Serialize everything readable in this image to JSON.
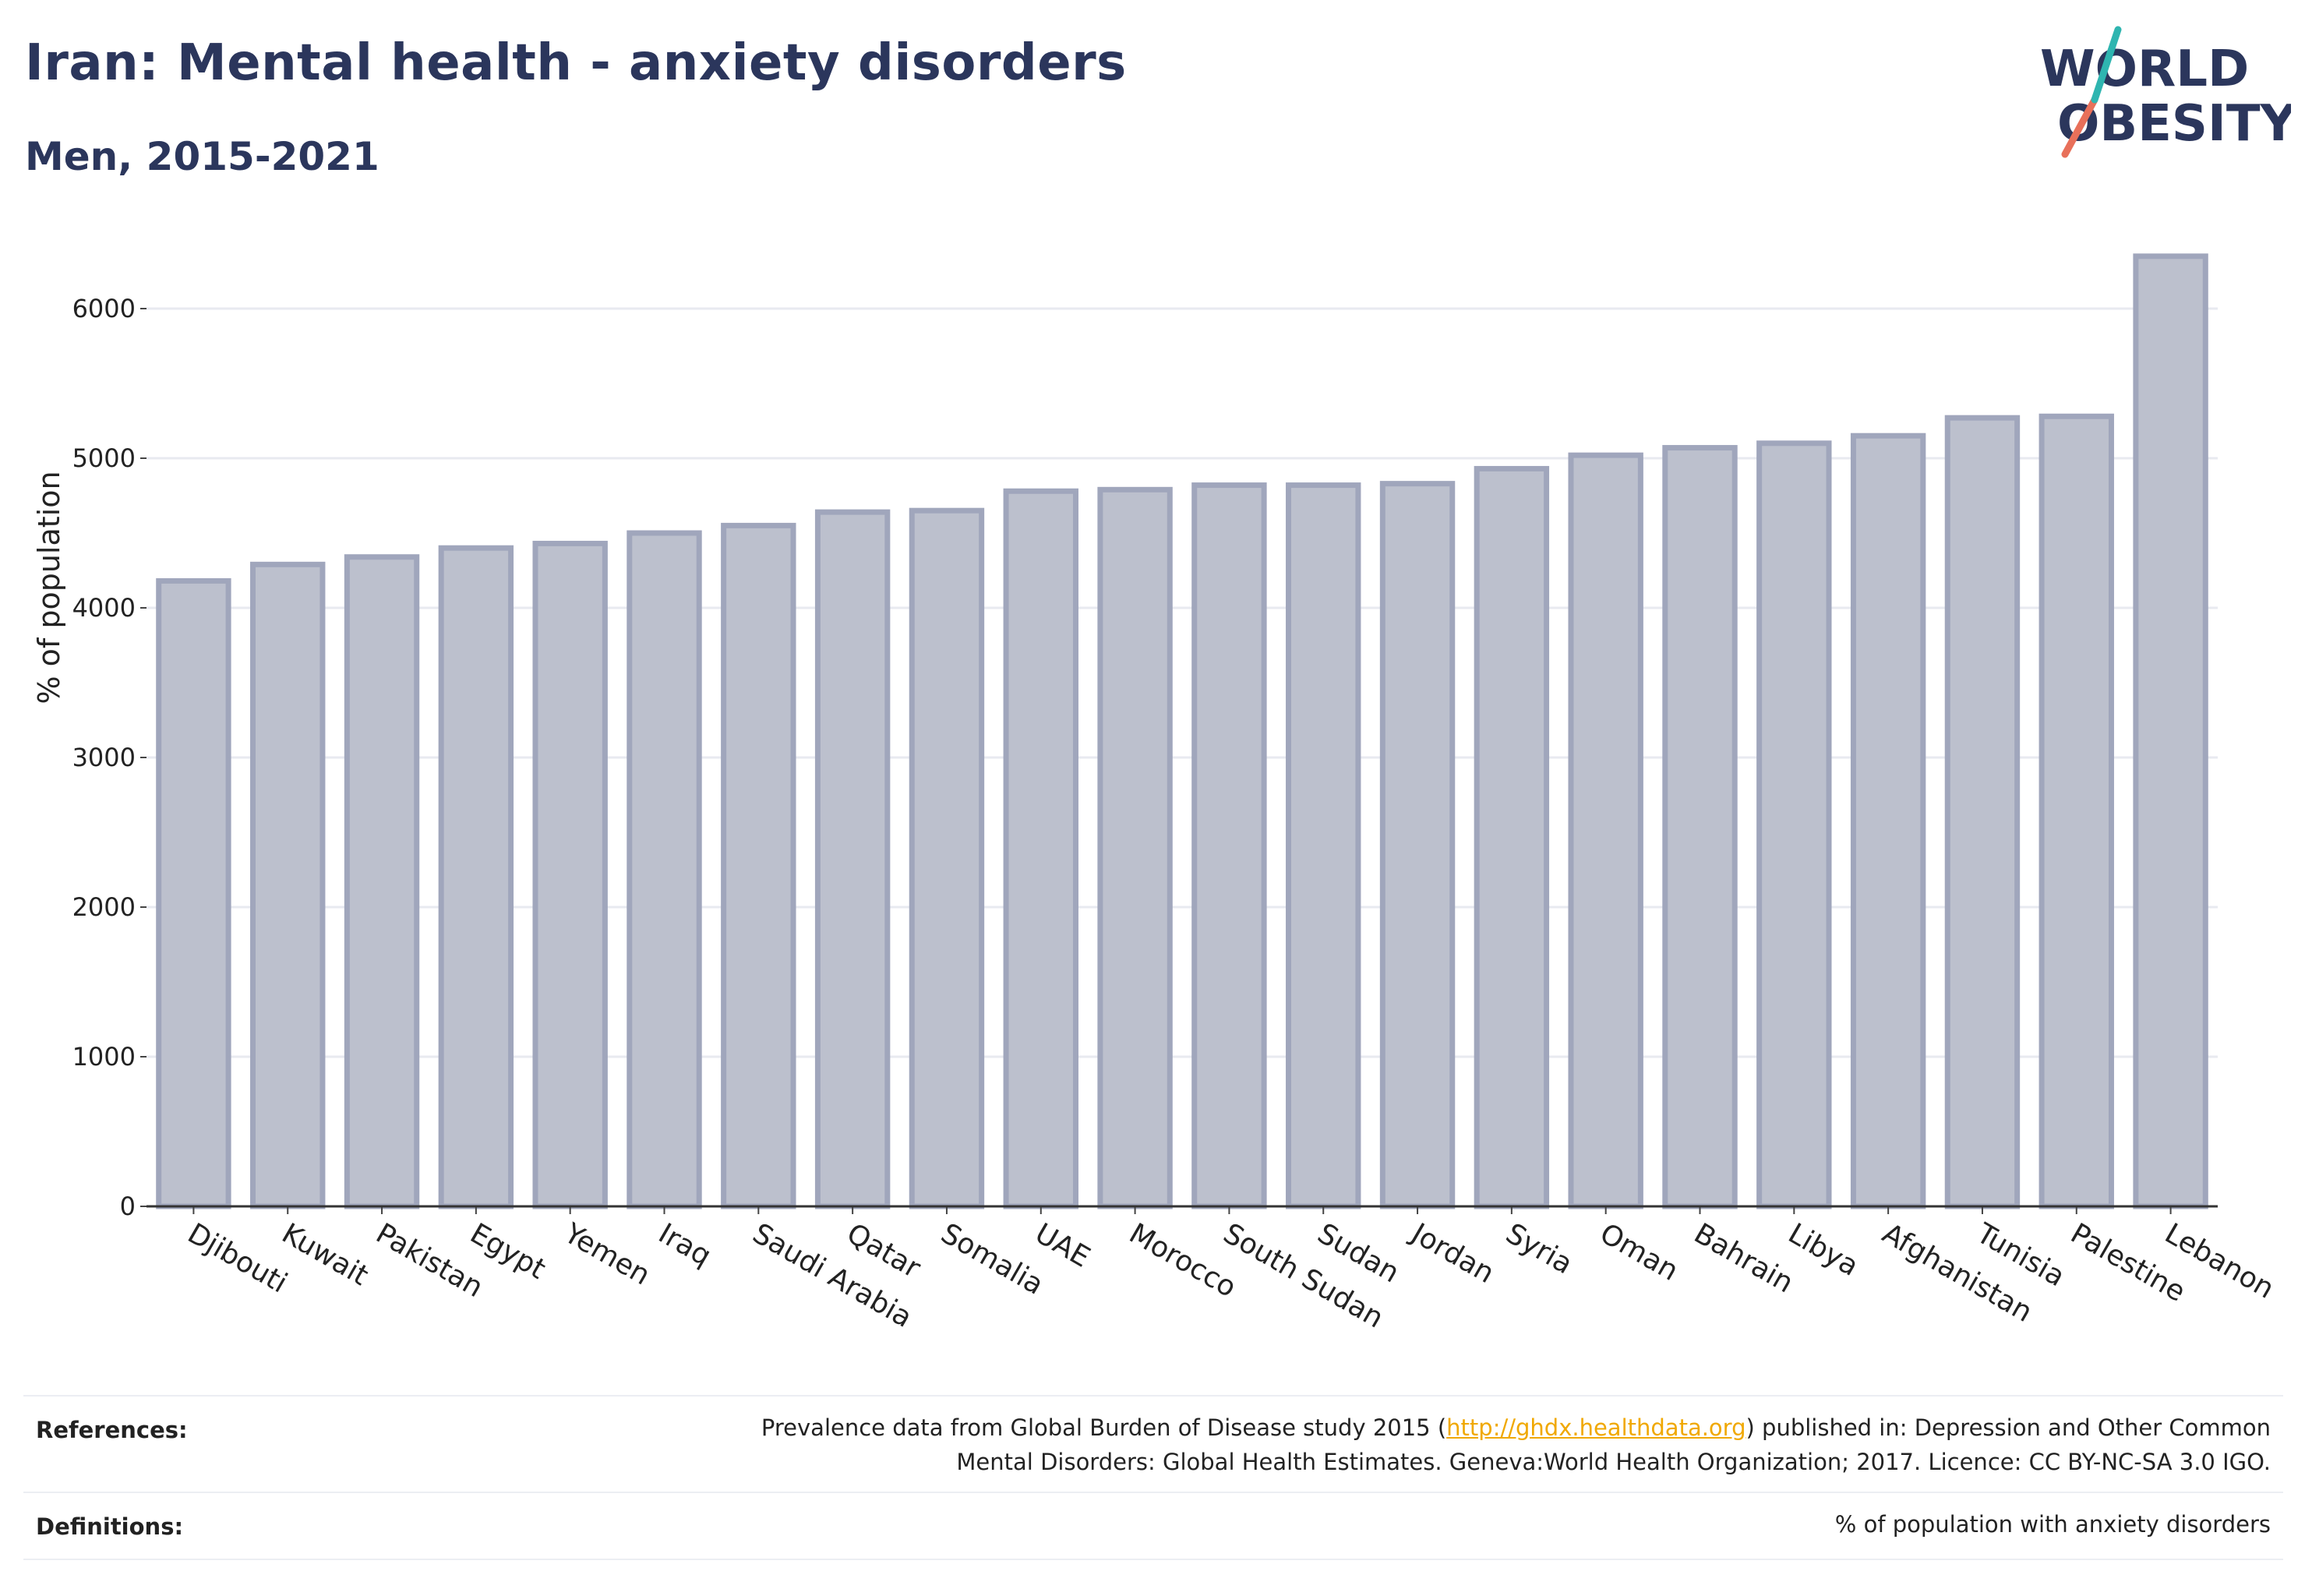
{
  "header": {
    "title": "Iran: Mental health - anxiety disorders",
    "subtitle": "Men, 2015-2021"
  },
  "logo": {
    "line1": "W",
    "line1b": "RLD",
    "line2": "BESITY",
    "text": "WORLD OBESITY"
  },
  "colors": {
    "bar_fill": "#bcc0cd",
    "bar_stroke": "#a0a6bc",
    "title": "#2b365c",
    "link": "#f0a800",
    "logo_slash_teal": "#2fb5b0",
    "logo_slash_red": "#e8705a"
  },
  "chart_data": {
    "type": "bar",
    "title": "Iran: Mental health - anxiety disorders",
    "subtitle": "Men, 2015-2021",
    "xlabel": "",
    "ylabel": "% of population",
    "ylim": [
      0,
      6500
    ],
    "yticks": [
      0,
      1000,
      2000,
      3000,
      4000,
      5000,
      6000
    ],
    "grid": true,
    "categories": [
      "Djibouti",
      "Kuwait",
      "Pakistan",
      "Egypt",
      "Yemen",
      "Iraq",
      "Saudi Arabia",
      "Qatar",
      "Somalia",
      "UAE",
      "Morocco",
      "South Sudan",
      "Sudan",
      "Jordan",
      "Syria",
      "Oman",
      "Bahrain",
      "Libya",
      "Afghanistan",
      "Tunisia",
      "Palestine",
      "Lebanon"
    ],
    "values": [
      4180,
      4290,
      4340,
      4400,
      4430,
      4500,
      4550,
      4640,
      4650,
      4780,
      4790,
      4820,
      4820,
      4830,
      4930,
      5020,
      5070,
      5100,
      5150,
      5270,
      5280,
      6350
    ]
  },
  "footer": {
    "references_label": "References:",
    "references_line1_pre": "Prevalence data from Global Burden of Disease study 2015 (",
    "references_link": "http://ghdx.healthdata.org",
    "references_line1_post": ") published in: Depression and Other Common",
    "references_line2": "Mental Disorders: Global Health Estimates. Geneva:World Health Organization; 2017. Licence: CC BY-NC-SA 3.0 IGO.",
    "definitions_label": "Definitions:",
    "definitions_text": "% of population with anxiety disorders"
  }
}
